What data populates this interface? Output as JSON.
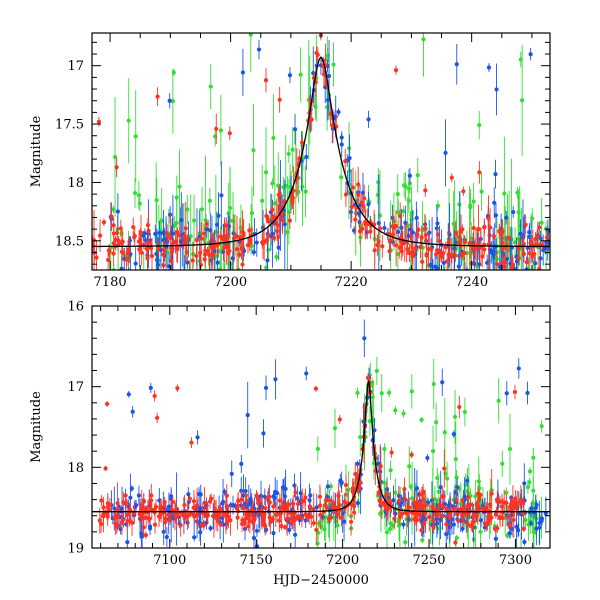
{
  "chart_data": [
    {
      "type": "scatter",
      "title": "",
      "xlabel": "",
      "ylabel": "Magnitude",
      "xlim": [
        7177,
        7253
      ],
      "ylim": [
        18.75,
        16.72
      ],
      "y_inverted": true,
      "x_ticks": [
        7180,
        7200,
        7220,
        7240
      ],
      "x_tick_labels": [
        "7180",
        "7200",
        "7220",
        "7240"
      ],
      "y_ticks": [
        17,
        17.5,
        18,
        18.5
      ],
      "y_tick_labels": [
        "17",
        "17.5",
        "18",
        "18.5"
      ],
      "model_curve": {
        "name": "model",
        "color": "#000000",
        "baseline": 18.55,
        "peak_time": 7215.0,
        "peak_mag": 16.93,
        "tE": 6.5,
        "u0": 0.235
      },
      "series": [
        {
          "name": "green",
          "color": "#33dd33",
          "x_range": [
            7180,
            7253
          ],
          "noise": 0.22,
          "bright_outlier_fraction": 0.18,
          "count": 230
        },
        {
          "name": "blue",
          "color": "#1a55e8",
          "x_range": [
            7180,
            7253
          ],
          "noise": 0.14,
          "bright_outlier_fraction": 0.04,
          "count": 230
        },
        {
          "name": "red",
          "color": "#ff3322",
          "x_range": [
            7177,
            7253
          ],
          "noise": 0.09,
          "bright_outlier_fraction": 0.03,
          "count": 320
        }
      ]
    },
    {
      "type": "scatter",
      "title": "",
      "xlabel": "HJD−2450000",
      "ylabel": "Magnitude",
      "xlim": [
        7055,
        7320
      ],
      "ylim": [
        19,
        16
      ],
      "y_inverted": true,
      "x_ticks": [
        7100,
        7150,
        7200,
        7250,
        7300
      ],
      "x_tick_labels": [
        "7100",
        "7150",
        "7200",
        "7250",
        "7300"
      ],
      "y_ticks": [
        16,
        17,
        18,
        19
      ],
      "y_tick_labels": [
        "16",
        "17",
        "18",
        "19"
      ],
      "model_curve": {
        "name": "model",
        "color": "#000000",
        "baseline": 18.55,
        "peak_time": 7215.0,
        "peak_mag": 16.93,
        "tE": 6.5,
        "u0": 0.235
      },
      "series": [
        {
          "name": "green",
          "color": "#33dd33",
          "x_range": [
            7185,
            7318
          ],
          "noise": 0.2,
          "bright_outlier_fraction": 0.15,
          "count": 180
        },
        {
          "name": "blue",
          "color": "#1a55e8",
          "x_range": [
            7065,
            7318
          ],
          "noise": 0.15,
          "bright_outlier_fraction": 0.04,
          "count": 320
        },
        {
          "name": "red",
          "color": "#ff3322",
          "x_range": [
            7058,
            7305
          ],
          "noise": 0.1,
          "bright_outlier_fraction": 0.02,
          "count": 420
        }
      ]
    }
  ]
}
